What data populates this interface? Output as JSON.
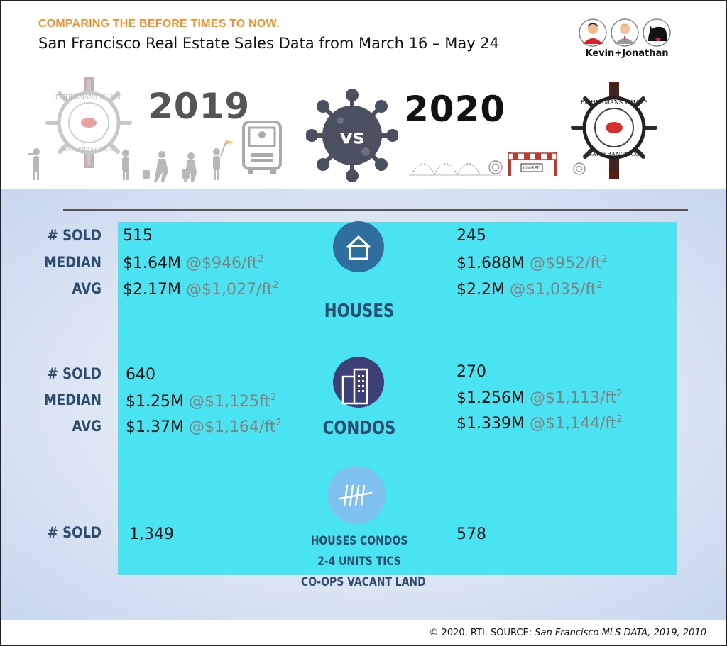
{
  "header": {
    "subtitle": "COMPARING THE BEFORE TIMES TO NOW.",
    "title": "San Francisco Real Estate Sales Data from March 16 – May 24",
    "brand": "Kevin+Jonathan",
    "year_before": "2019",
    "year_after": "2020",
    "vs_label": "vs",
    "closed_sign": "CLOSED",
    "wheel_text": "FISHERMANS WHARF OF SAN FRANCISCO"
  },
  "labels": {
    "sold": "# SOLD",
    "median": "MEDIAN",
    "avg": "AVG"
  },
  "houses": {
    "category": "HOUSES",
    "y2019": {
      "sold": "515",
      "median": "$1.64M",
      "median_ppf": "@$946/ft",
      "avg": "$2.17M",
      "avg_ppf": "@$1,027/ft"
    },
    "y2020": {
      "sold": "245",
      "median": "$1.688M",
      "median_ppf": "@$952/ft",
      "avg": "$2.2M",
      "avg_ppf": "@$1,035/ft"
    }
  },
  "condos": {
    "category": "CONDOS",
    "y2019": {
      "sold": "640",
      "median": "$1.25M",
      "median_ppf": "@$1,125ft",
      "avg": "$1.37M",
      "avg_ppf": "@$1,164/ft"
    },
    "y2020": {
      "sold": "270",
      "median": "$1.256M",
      "median_ppf": "@$1,113/ft",
      "avg": "$1.339M",
      "avg_ppf": "@$1,144/ft"
    }
  },
  "total": {
    "category_lines": [
      "HOUSES CONDOS",
      "2-4 UNITS TICS",
      "CO-OPS VACANT LAND"
    ],
    "y2019_sold": "1,349",
    "y2020_sold": "578"
  },
  "superscript": "2",
  "footer": {
    "prefix": "© 2020, RTI. SOURCE: ",
    "source": "San Francisco MLS DATA, 2019, 2010"
  },
  "colors": {
    "accent_orange": "#f0912a",
    "label_navy": "#2e4c6d",
    "panel_cyan": "#4ae3f2",
    "house_circle": "#2f6f9f",
    "condo_circle": "#3c3f78",
    "tally_circle": "#7ec1ee"
  },
  "icons": [
    "house-icon",
    "building-icon",
    "tally-icon",
    "virus-icon",
    "ships-wheel-icon",
    "bus-icon",
    "tourist-icon",
    "barrier-icon"
  ]
}
